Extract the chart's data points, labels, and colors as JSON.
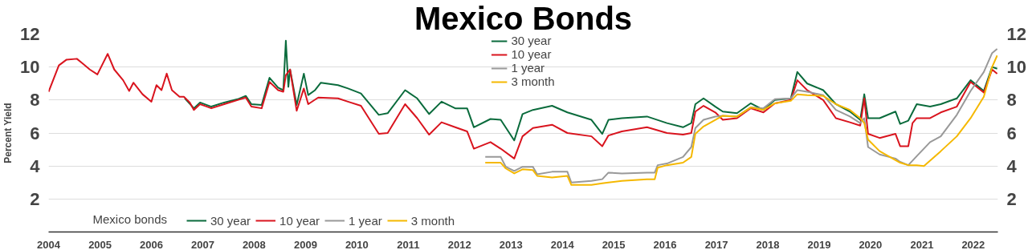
{
  "chart_data": {
    "type": "line",
    "title": "Mexico Bonds",
    "ylabel": "Percent Yield",
    "legend_title": "Mexico bonds",
    "legend": "top",
    "grid": "y",
    "xlim": [
      "2004",
      "2022-06-25"
    ],
    "xticks": [
      "2004",
      "2005",
      "2006",
      "2007",
      "2008",
      "2009",
      "2010",
      "2011",
      "2012",
      "2013",
      "2014",
      "2015",
      "2016",
      "2017",
      "2018",
      "2019",
      "2020",
      "2021",
      "2022"
    ],
    "ylim": [
      0,
      12
    ],
    "yticks": [
      2,
      4,
      6,
      8,
      10,
      12
    ],
    "y2lim": [
      0,
      12
    ],
    "y2ticks": [
      2,
      4,
      6,
      8,
      10,
      12
    ],
    "series": [
      {
        "name": "30 year",
        "color": "#0a6b3c",
        "x": [
          "2006-08-27",
          "2006-10-30",
          "2006-12-13",
          "2007-03-03",
          "2007-06-03",
          "2007-09-06",
          "2007-11-03",
          "2007-12-13",
          "2008-02-24",
          "2008-04-20",
          "2008-06-20",
          "2008-07-27",
          "2008-08-14",
          "2008-09-01",
          "2008-09-13",
          "2008-10-30",
          "2008-12-20",
          "2009-01-20",
          "2009-03-10",
          "2009-04-20",
          "2009-08-20",
          "2009-10-30",
          "2010-01-30",
          "2010-06-06",
          "2010-08-08",
          "2010-12-10",
          "2011-03-06",
          "2011-05-30",
          "2011-08-26",
          "2011-12-01",
          "2012-02-24",
          "2012-04-12",
          "2012-08-08",
          "2012-10-20",
          "2013-01-24",
          "2013-03-24",
          "2013-06-06",
          "2013-10-20",
          "2014-02-06",
          "2014-07-27",
          "2014-10-12",
          "2014-11-25",
          "2015-02-28",
          "2015-08-26",
          "2016-01-15",
          "2016-05-08",
          "2016-07-06",
          "2016-08-04",
          "2016-10-01",
          "2016-12-24",
          "2017-02-15",
          "2017-05-27",
          "2017-09-01",
          "2017-12-01",
          "2018-02-20",
          "2018-06-14",
          "2018-07-30",
          "2018-10-08",
          "2019-01-30",
          "2019-04-30",
          "2019-08-08",
          "2019-10-20",
          "2019-11-18",
          "2019-12-15",
          "2020-03-06",
          "2020-06-27",
          "2020-07-30",
          "2020-09-26",
          "2020-11-25",
          "2021-02-28",
          "2021-05-15",
          "2021-09-06",
          "2021-12-13",
          "2022-03-17",
          "2022-05-15",
          "2022-06-20"
        ],
        "values": [
          8.1,
          7.5,
          7.85,
          7.6,
          7.85,
          8.05,
          8.25,
          7.75,
          7.7,
          9.35,
          8.75,
          8.6,
          11.6,
          8.8,
          9.85,
          7.7,
          9.6,
          8.3,
          8.6,
          9.05,
          8.9,
          8.7,
          8.4,
          7.1,
          7.2,
          8.6,
          8.1,
          7.15,
          7.9,
          7.5,
          7.5,
          6.35,
          6.85,
          6.8,
          5.55,
          7.15,
          7.4,
          7.65,
          7.25,
          6.8,
          5.95,
          6.8,
          6.9,
          7.0,
          6.6,
          6.35,
          6.6,
          7.75,
          8.1,
          7.6,
          7.3,
          7.2,
          7.8,
          7.4,
          8.0,
          8.1,
          9.7,
          9.0,
          8.6,
          7.75,
          7.3,
          6.8,
          8.35,
          6.9,
          6.9,
          7.3,
          6.55,
          6.75,
          7.75,
          7.6,
          7.75,
          8.1,
          9.2,
          8.55,
          10.0,
          9.9
        ]
      },
      {
        "name": "10 year",
        "color": "#d9141e",
        "x": [
          "2004-01-01",
          "2004-03-14",
          "2004-05-08",
          "2004-07-20",
          "2004-09-01",
          "2004-10-20",
          "2004-12-13",
          "2005-02-24",
          "2005-04-12",
          "2005-06-14",
          "2005-07-27",
          "2005-08-26",
          "2005-10-30",
          "2006-01-01",
          "2006-02-06",
          "2006-03-14",
          "2006-04-20",
          "2006-05-27",
          "2006-07-20",
          "2006-08-20",
          "2006-10-01",
          "2006-10-30",
          "2006-12-13",
          "2007-03-03",
          "2007-06-03",
          "2007-09-06",
          "2007-11-03",
          "2007-12-13",
          "2008-02-24",
          "2008-04-20",
          "2008-06-20",
          "2008-07-27",
          "2008-08-14",
          "2008-09-13",
          "2008-10-30",
          "2008-12-20",
          "2009-01-20",
          "2009-04-01",
          "2009-08-20",
          "2009-10-30",
          "2010-01-30",
          "2010-06-06",
          "2010-08-08",
          "2010-12-10",
          "2011-03-06",
          "2011-05-30",
          "2011-08-26",
          "2011-12-01",
          "2012-02-24",
          "2012-04-12",
          "2012-08-08",
          "2012-10-20",
          "2013-01-24",
          "2013-03-24",
          "2013-06-06",
          "2013-10-20",
          "2014-02-06",
          "2014-07-27",
          "2014-10-12",
          "2014-11-25",
          "2015-02-28",
          "2015-08-26",
          "2016-01-15",
          "2016-05-08",
          "2016-07-06",
          "2016-08-04",
          "2016-10-01",
          "2016-12-24",
          "2017-02-15",
          "2017-05-27",
          "2017-09-01",
          "2017-12-01",
          "2018-02-20",
          "2018-06-14",
          "2018-07-30",
          "2018-10-08",
          "2019-01-30",
          "2019-04-30",
          "2019-08-08",
          "2019-10-20",
          "2019-11-18",
          "2019-12-15",
          "2020-03-06",
          "2020-06-27",
          "2020-07-30",
          "2020-09-26",
          "2020-10-26",
          "2020-11-25",
          "2021-02-28",
          "2021-05-15",
          "2021-09-06",
          "2021-12-13",
          "2022-03-17",
          "2022-05-15",
          "2022-06-20"
        ],
        "values": [
          8.5,
          10.1,
          10.45,
          10.5,
          10.2,
          9.85,
          9.55,
          10.8,
          9.85,
          9.2,
          8.55,
          9.05,
          8.35,
          7.9,
          8.9,
          8.6,
          9.6,
          8.6,
          8.2,
          8.2,
          7.85,
          7.4,
          7.75,
          7.5,
          7.75,
          8.0,
          8.15,
          7.6,
          7.5,
          9.1,
          8.6,
          8.5,
          9.5,
          9.85,
          7.35,
          8.7,
          7.75,
          8.15,
          8.1,
          7.9,
          7.65,
          5.95,
          6.0,
          7.75,
          6.9,
          5.9,
          6.65,
          6.35,
          6.1,
          5.05,
          5.45,
          5.05,
          4.45,
          5.8,
          6.3,
          6.5,
          6.0,
          5.8,
          5.2,
          5.85,
          6.1,
          6.35,
          6.0,
          5.9,
          6.0,
          7.3,
          7.65,
          7.25,
          6.8,
          6.9,
          7.5,
          7.25,
          7.8,
          8.0,
          9.2,
          8.6,
          8.0,
          6.9,
          6.65,
          6.45,
          8.1,
          5.95,
          5.7,
          5.95,
          5.2,
          5.2,
          6.6,
          6.9,
          6.9,
          7.25,
          7.6,
          9.1,
          8.45,
          9.85,
          9.6
        ]
      },
      {
        "name": "1 year",
        "color": "#999999",
        "x": [
          "2012-07-02",
          "2012-10-20",
          "2012-11-25",
          "2013-01-24",
          "2013-03-24",
          "2013-06-06",
          "2013-07-06",
          "2013-10-20",
          "2014-02-06",
          "2014-03-06",
          "2014-07-27",
          "2014-10-12",
          "2014-11-25",
          "2015-02-28",
          "2015-08-26",
          "2015-10-20",
          "2015-11-10",
          "2016-01-15",
          "2016-05-08",
          "2016-07-06",
          "2016-08-04",
          "2016-10-01",
          "2016-12-24",
          "2017-02-15",
          "2017-05-27",
          "2017-09-01",
          "2017-12-01",
          "2018-02-20",
          "2018-06-14",
          "2018-07-30",
          "2018-10-08",
          "2019-01-30",
          "2019-04-30",
          "2019-08-08",
          "2019-10-20",
          "2019-11-18",
          "2019-12-15",
          "2020-03-06",
          "2020-06-27",
          "2020-07-30",
          "2020-09-26",
          "2020-11-25",
          "2021-02-28",
          "2021-05-15",
          "2021-09-06",
          "2021-12-13",
          "2022-03-17",
          "2022-05-15",
          "2022-06-20"
        ],
        "values": [
          4.55,
          4.55,
          3.95,
          3.7,
          3.95,
          3.95,
          3.5,
          3.65,
          3.65,
          3.0,
          3.1,
          3.2,
          3.6,
          3.55,
          3.6,
          3.6,
          4.05,
          4.15,
          4.55,
          5.15,
          6.3,
          6.8,
          7.0,
          7.05,
          7.0,
          7.55,
          7.5,
          8.05,
          8.1,
          8.6,
          8.5,
          8.3,
          7.4,
          7.0,
          6.6,
          6.9,
          5.15,
          4.7,
          4.45,
          4.25,
          4.05,
          4.6,
          5.45,
          5.8,
          7.1,
          8.55,
          9.7,
          10.85,
          11.1
        ]
      },
      {
        "name": "3 month",
        "color": "#f5b800",
        "x": [
          "2012-07-02",
          "2012-10-20",
          "2012-11-25",
          "2013-01-24",
          "2013-03-24",
          "2013-06-06",
          "2013-07-06",
          "2013-10-20",
          "2014-02-06",
          "2014-03-06",
          "2014-07-27",
          "2014-10-12",
          "2014-11-25",
          "2015-02-28",
          "2015-08-26",
          "2015-10-20",
          "2015-11-10",
          "2016-01-15",
          "2016-05-08",
          "2016-07-06",
          "2016-08-04",
          "2016-10-01",
          "2016-12-24",
          "2017-02-15",
          "2017-05-27",
          "2017-09-01",
          "2017-12-01",
          "2018-02-20",
          "2018-06-14",
          "2018-07-30",
          "2018-10-08",
          "2019-01-30",
          "2019-04-30",
          "2019-08-08",
          "2019-10-20",
          "2019-11-18",
          "2019-12-15",
          "2020-03-06",
          "2020-06-27",
          "2020-07-30",
          "2020-09-26",
          "2020-11-25",
          "2021-01-15",
          "2021-05-15",
          "2021-09-06",
          "2021-12-13",
          "2022-03-17",
          "2022-05-15",
          "2022-06-20"
        ],
        "values": [
          4.2,
          4.2,
          3.85,
          3.55,
          3.8,
          3.75,
          3.4,
          3.3,
          3.4,
          2.85,
          2.85,
          2.95,
          3.0,
          3.1,
          3.2,
          3.2,
          3.9,
          4.05,
          4.2,
          4.55,
          5.95,
          6.4,
          6.8,
          7.05,
          7.0,
          7.55,
          7.4,
          7.8,
          7.95,
          8.35,
          8.3,
          8.25,
          7.75,
          7.4,
          6.9,
          6.6,
          5.6,
          4.9,
          4.35,
          4.2,
          4.05,
          4.05,
          4.0,
          4.9,
          5.8,
          6.9,
          8.2,
          10.0,
          10.7
        ]
      }
    ]
  }
}
